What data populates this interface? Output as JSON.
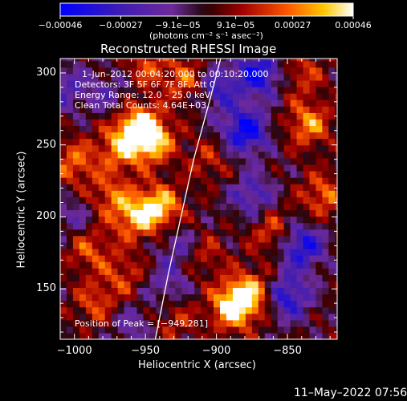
{
  "chart_data": {
    "type": "heatmap",
    "title": "Reconstructed RHESSI Image",
    "xlabel": "Heliocentric X (arcsec)",
    "ylabel": "Heliocentric Y (arcsec)",
    "xlim": [
      -1010,
      -815
    ],
    "ylim": [
      115,
      310
    ],
    "x_ticks": [
      -1000,
      -950,
      -900,
      -850
    ],
    "x_tick_labels": [
      "−1000",
      "−950",
      "−900",
      "−850"
    ],
    "y_ticks": [
      150,
      200,
      250,
      300
    ],
    "y_tick_labels": [
      "150",
      "200",
      "250",
      "300"
    ],
    "colorbar": {
      "tick_values": [
        -0.00046,
        -0.00027,
        -9.1e-05,
        9.1e-05,
        0.00027,
        0.00046
      ],
      "tick_labels": [
        "−0.00046",
        "−0.00027",
        "−9.1e−05",
        "9.1e−05",
        "0.00027",
        "0.00046"
      ],
      "units": "(photons cm⁻² s⁻¹ asec⁻²)",
      "range": [
        -0.00046,
        0.00046
      ]
    },
    "annotations": {
      "time": "1–Jun–2012 00:04:20.000 to 00:10:20.000",
      "detectors": "Detectors: 3F 5F 6F 7F 8F, Att 0",
      "energy": "Energy Range: 12.0 – 25.0 keV",
      "clean": "Clean     Total Counts: 4.64E+03",
      "peak": "Position of Peak = [−949,281]"
    },
    "blobs": [
      {
        "x": -955,
        "y": 263,
        "v": 0.0004
      },
      {
        "x": -945,
        "y": 253,
        "v": 0.00035
      },
      {
        "x": -968,
        "y": 248,
        "v": 0.00028
      },
      {
        "x": -940,
        "y": 207,
        "v": 0.00038
      },
      {
        "x": -958,
        "y": 200,
        "v": 0.0003
      },
      {
        "x": -975,
        "y": 215,
        "v": 0.00022
      },
      {
        "x": -888,
        "y": 138,
        "v": 0.00046
      },
      {
        "x": -875,
        "y": 148,
        "v": 0.0003
      },
      {
        "x": -1000,
        "y": 238,
        "v": 0.00025
      },
      {
        "x": -990,
        "y": 178,
        "v": 0.00022
      },
      {
        "x": -985,
        "y": 140,
        "v": 0.0002
      },
      {
        "x": -920,
        "y": 295,
        "v": 0.00025
      },
      {
        "x": -948,
        "y": 305,
        "v": 0.0002
      },
      {
        "x": -835,
        "y": 265,
        "v": 0.0003
      },
      {
        "x": -825,
        "y": 215,
        "v": 0.00025
      },
      {
        "x": -860,
        "y": 190,
        "v": 0.00022
      },
      {
        "x": -905,
        "y": 240,
        "v": 0.00015
      },
      {
        "x": -910,
        "y": 175,
        "v": 0.00018
      },
      {
        "x": -840,
        "y": 300,
        "v": 0.00018
      },
      {
        "x": -965,
        "y": 160,
        "v": 0.00018
      },
      {
        "x": -930,
        "y": 130,
        "v": 0.00016
      },
      {
        "x": -880,
        "y": 260,
        "v": -0.00045
      },
      {
        "x": -900,
        "y": 290,
        "v": -0.0003
      },
      {
        "x": -870,
        "y": 300,
        "v": -0.0004
      },
      {
        "x": -840,
        "y": 180,
        "v": -0.0004
      },
      {
        "x": -850,
        "y": 145,
        "v": -0.00035
      },
      {
        "x": -875,
        "y": 215,
        "v": -0.00025
      },
      {
        "x": -1005,
        "y": 290,
        "v": -0.0002
      },
      {
        "x": -925,
        "y": 180,
        "v": -0.0002
      },
      {
        "x": -935,
        "y": 152,
        "v": -0.00018
      },
      {
        "x": -975,
        "y": 285,
        "v": -0.00015
      },
      {
        "x": -1000,
        "y": 200,
        "v": -0.00015
      },
      {
        "x": -960,
        "y": 125,
        "v": -0.00015
      }
    ],
    "limb": [
      [
        -943,
        115
      ],
      [
        -934,
        160
      ],
      [
        -925,
        200
      ],
      [
        -916,
        240
      ],
      [
        -905,
        280
      ],
      [
        -897,
        310
      ]
    ]
  },
  "footer": {
    "timestamp": "11–May–2022 07:56"
  }
}
